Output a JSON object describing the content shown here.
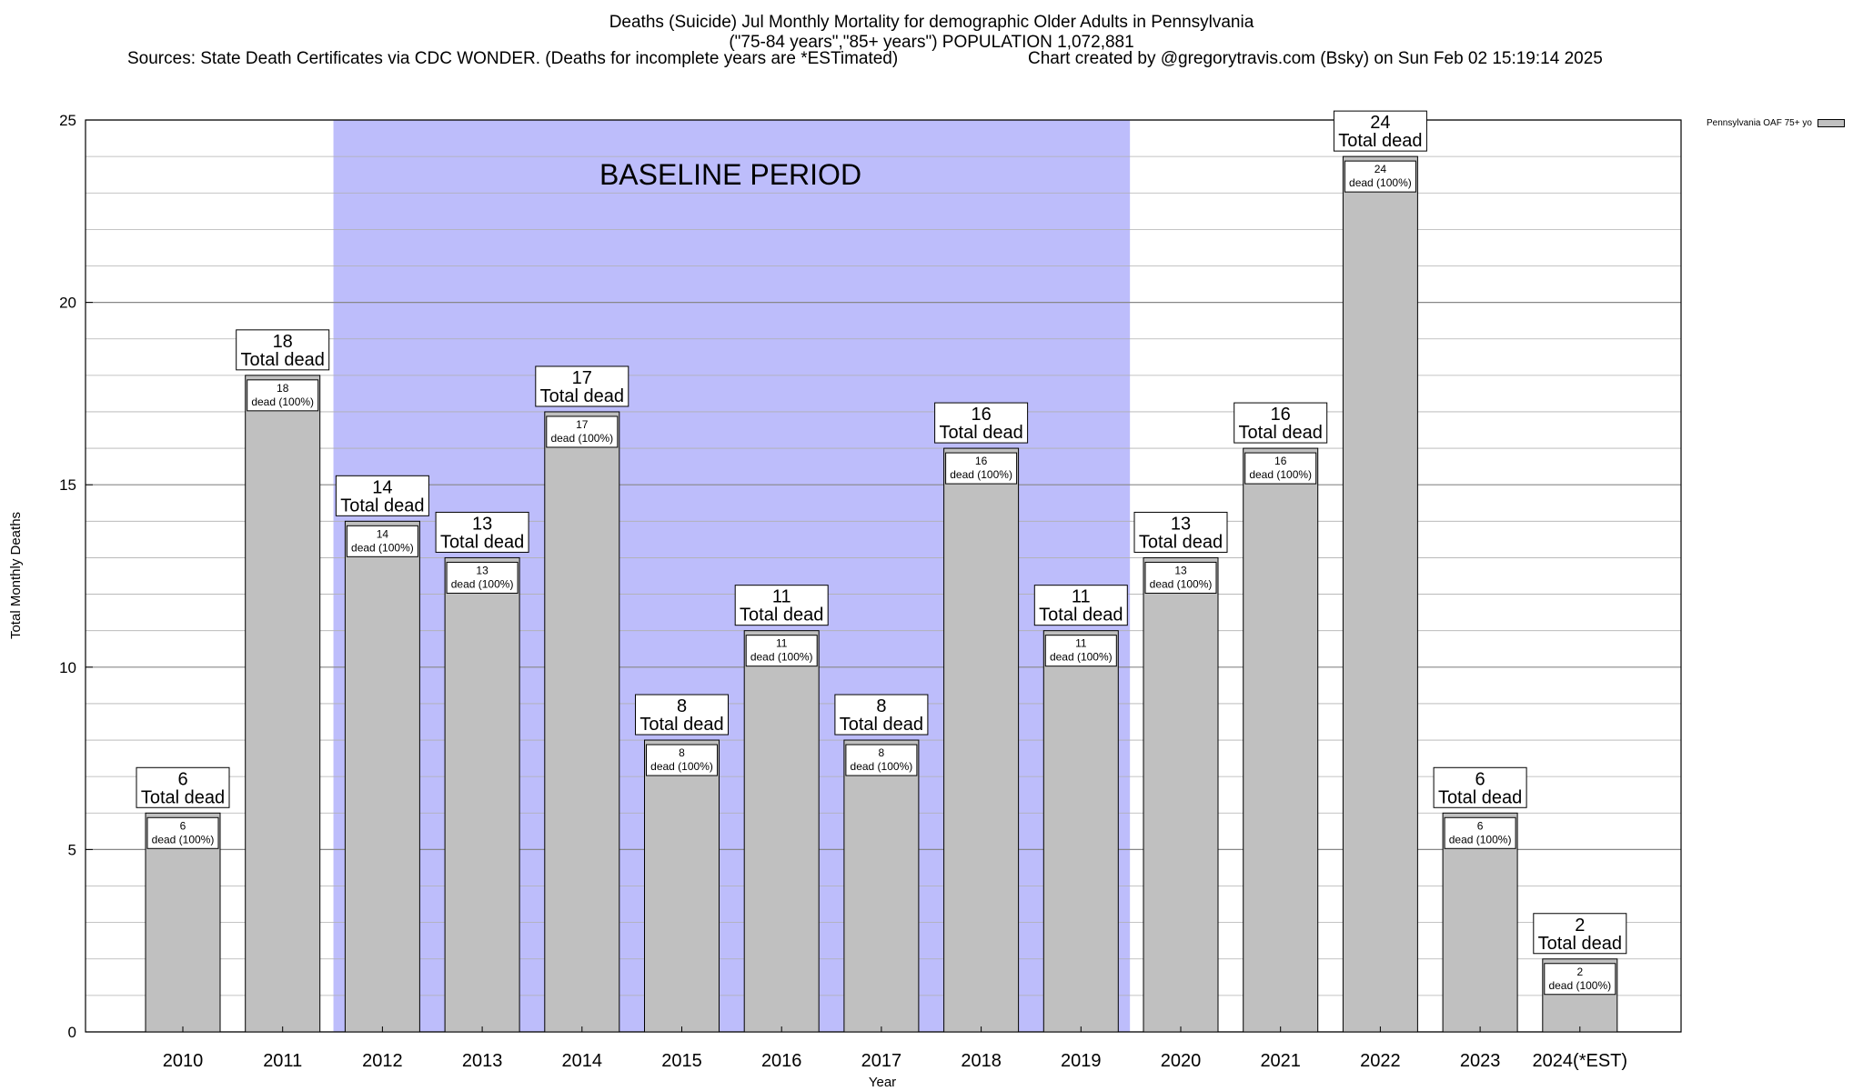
{
  "header": {
    "title_line1": "Deaths (Suicide) Jul Monthly Mortality for demographic Older Adults in Pennsylvania",
    "title_line2": "(\"75-84 years\",\"85+ years\") POPULATION 1,072,881",
    "sources": "Sources: State Death Certificates via CDC WONDER. (Deaths for incomplete years are *ESTimated)",
    "created": "Chart created by @gregorytravis.com (Bsky) on Sun Feb 02 15:19:14 2025"
  },
  "legend": {
    "label": "Pennsylvania OAF 75+ yo"
  },
  "colors": {
    "bar": "#c0c0c0",
    "baseline": "#bdbdfb",
    "grid": "#b0b0b0"
  },
  "chart_data": {
    "type": "bar",
    "categories": [
      "2010",
      "2011",
      "2012",
      "2013",
      "2014",
      "2015",
      "2016",
      "2017",
      "2018",
      "2019",
      "2020",
      "2021",
      "2022",
      "2023",
      "2024(*EST)"
    ],
    "series": [
      {
        "name": "Pennsylvania OAF 75+ yo",
        "values": [
          6,
          18,
          14,
          13,
          17,
          8,
          11,
          8,
          16,
          11,
          13,
          16,
          24,
          6,
          2
        ]
      }
    ],
    "total_label": "Total dead",
    "inner_label": "dead (100%)",
    "xlabel": "Year",
    "ylabel": "Total Monthly Deaths",
    "ylim": [
      0,
      25
    ],
    "yticks": [
      0,
      5,
      10,
      15,
      20,
      25
    ],
    "grid": true,
    "baseline": {
      "label": "BASELINE PERIOD",
      "from": "2012",
      "to": "2019"
    },
    "legend_position": "top-right"
  }
}
